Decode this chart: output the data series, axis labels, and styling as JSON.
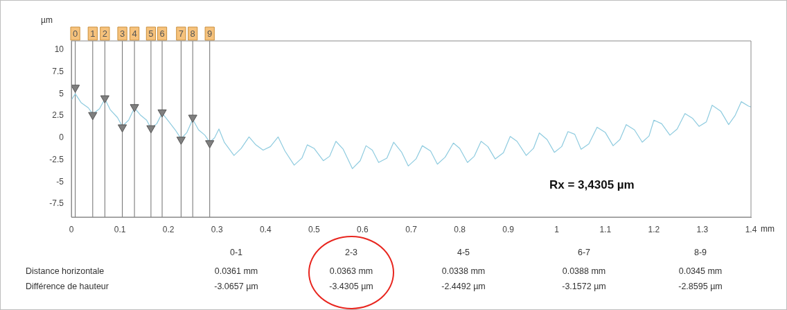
{
  "chart_data": {
    "type": "line",
    "ylabel": "µm",
    "xlabel": "mm",
    "xlim": [
      0,
      1.4
    ],
    "ylim": [
      -9,
      11
    ],
    "xticks": [
      0,
      0.1,
      0.2,
      0.3,
      0.4,
      0.5,
      0.6,
      0.7,
      0.8,
      0.9,
      1,
      1.1,
      1.2,
      1.3,
      1.4
    ],
    "yticks": [
      -7.5,
      -5,
      -2.5,
      0,
      2.5,
      5,
      7.5,
      10
    ],
    "grid": false,
    "legend": false,
    "series": [
      {
        "type": "line",
        "color": "#8ecbdf",
        "marker": "none",
        "x": [
          0,
          0.008,
          0.02,
          0.035,
          0.044,
          0.058,
          0.069,
          0.08,
          0.095,
          0.105,
          0.118,
          0.13,
          0.142,
          0.155,
          0.164,
          0.176,
          0.187,
          0.2,
          0.214,
          0.226,
          0.238,
          0.25,
          0.262,
          0.275,
          0.285,
          0.295,
          0.304,
          0.315,
          0.335,
          0.35,
          0.366,
          0.38,
          0.395,
          0.41,
          0.426,
          0.44,
          0.459,
          0.475,
          0.486,
          0.5,
          0.519,
          0.532,
          0.545,
          0.56,
          0.579,
          0.595,
          0.607,
          0.62,
          0.633,
          0.65,
          0.664,
          0.68,
          0.694,
          0.71,
          0.723,
          0.74,
          0.754,
          0.77,
          0.787,
          0.8,
          0.816,
          0.83,
          0.844,
          0.858,
          0.873,
          0.89,
          0.904,
          0.918,
          0.937,
          0.952,
          0.964,
          0.98,
          0.995,
          1.01,
          1.023,
          1.037,
          1.05,
          1.066,
          1.083,
          1.1,
          1.116,
          1.13,
          1.143,
          1.16,
          1.176,
          1.19,
          1.2,
          1.216,
          1.233,
          1.248,
          1.264,
          1.28,
          1.293,
          1.308,
          1.32,
          1.338,
          1.354,
          1.367,
          1.38,
          1.395,
          1.4
        ],
        "values": [
          4.3,
          5.0,
          4.0,
          3.4,
          2.7,
          3.3,
          4.4,
          3.2,
          2.3,
          1.3,
          2.0,
          3.4,
          2.6,
          2.0,
          1.1,
          1.6,
          2.8,
          1.9,
          0.9,
          -0.1,
          0.6,
          2.1,
          0.9,
          0.3,
          -0.5,
          0.0,
          1.0,
          -0.5,
          -2.0,
          -1.2,
          0.1,
          -0.8,
          -1.4,
          -1.0,
          0.1,
          -1.5,
          -3.1,
          -2.3,
          -0.8,
          -1.2,
          -2.6,
          -2.1,
          -0.4,
          -1.3,
          -3.5,
          -2.6,
          -0.9,
          -1.4,
          -2.8,
          -2.3,
          -0.5,
          -1.6,
          -3.2,
          -2.4,
          -0.9,
          -1.5,
          -3.0,
          -2.2,
          -0.6,
          -1.2,
          -2.8,
          -2.1,
          -0.4,
          -1.0,
          -2.4,
          -1.7,
          0.15,
          -0.4,
          -2.0,
          -1.2,
          0.55,
          -0.2,
          -1.65,
          -1.0,
          0.7,
          0.4,
          -1.3,
          -0.7,
          1.2,
          0.6,
          -0.9,
          -0.2,
          1.5,
          0.9,
          -0.5,
          0.2,
          2.0,
          1.6,
          0.3,
          1.0,
          2.75,
          2.2,
          1.3,
          1.8,
          3.7,
          3.0,
          1.5,
          2.5,
          4.1,
          3.6,
          3.5
        ]
      },
      {
        "type": "scatter",
        "color": "#7f7f7f",
        "marker": "triangle",
        "x": [
          0.008,
          0.044,
          0.069,
          0.105,
          0.13,
          0.164,
          0.187,
          0.226,
          0.25,
          0.285
        ],
        "values": [
          5.7,
          2.6,
          4.5,
          1.2,
          3.5,
          1.1,
          2.9,
          -0.2,
          2.3,
          -0.6
        ]
      }
    ],
    "ref_lines": [
      {
        "axis": "x",
        "value": 0.008,
        "color": "#6e6e6e"
      },
      {
        "axis": "x",
        "value": 0.044,
        "color": "#6e6e6e"
      },
      {
        "axis": "x",
        "value": 0.069,
        "color": "#6e6e6e"
      },
      {
        "axis": "x",
        "value": 0.105,
        "color": "#6e6e6e"
      },
      {
        "axis": "x",
        "value": 0.13,
        "color": "#6e6e6e"
      },
      {
        "axis": "x",
        "value": 0.164,
        "color": "#6e6e6e"
      },
      {
        "axis": "x",
        "value": 0.187,
        "color": "#6e6e6e"
      },
      {
        "axis": "x",
        "value": 0.226,
        "color": "#6e6e6e"
      },
      {
        "axis": "x",
        "value": 0.25,
        "color": "#6e6e6e"
      },
      {
        "axis": "x",
        "value": 0.285,
        "color": "#6e6e6e"
      }
    ],
    "annotations": [
      {
        "text": "0",
        "x": 0.008
      },
      {
        "text": "1",
        "x": 0.044
      },
      {
        "text": "2",
        "x": 0.069
      },
      {
        "text": "3",
        "x": 0.105
      },
      {
        "text": "4",
        "x": 0.13
      },
      {
        "text": "5",
        "x": 0.164
      },
      {
        "text": "6",
        "x": 0.187
      },
      {
        "text": "7",
        "x": 0.226
      },
      {
        "text": "8",
        "x": 0.25
      },
      {
        "text": "9",
        "x": 0.285
      },
      "Rx = 3,4305 µm",
      "0-1",
      "2-3",
      "4-5",
      "6-7",
      "8-9",
      "Distance horizontale",
      "0.0361 mm",
      "0.0363 mm",
      "0.0338 mm",
      "0.0388 mm",
      "0.0345 mm",
      "Différence de hauteur",
      "-3.0657 µm",
      "-3.4305 µm",
      "-2.4492 µm",
      "-3.1572 µm",
      "-2.8595 µm"
    ]
  }
}
